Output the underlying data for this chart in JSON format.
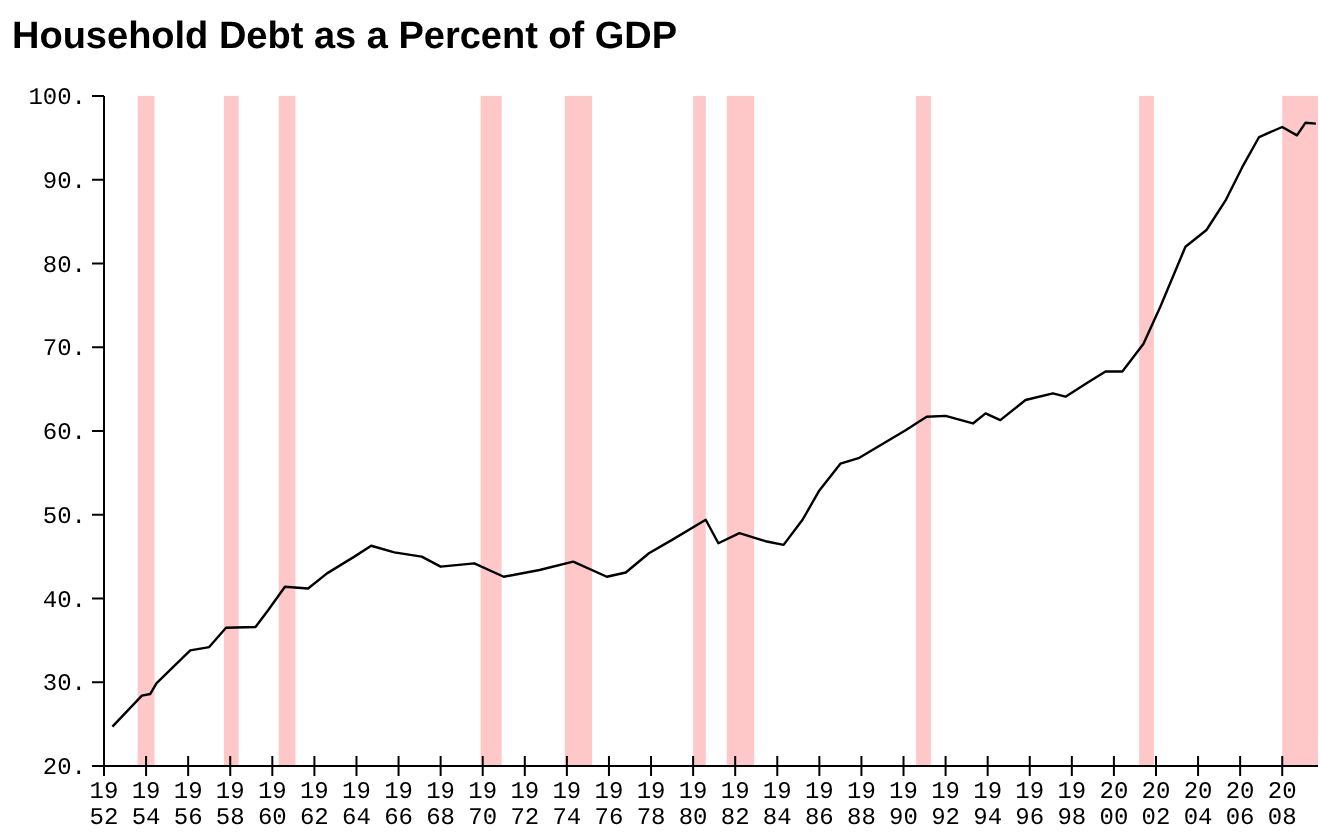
{
  "chart_data": {
    "type": "line",
    "title": "Household Debt as a Percent of GDP",
    "x": [
      1952.4,
      1953.8,
      1954.2,
      1954.5,
      1956.1,
      1957.0,
      1957.8,
      1959.2,
      1959.8,
      1960.6,
      1961.7,
      1962.6,
      1963.9,
      1964.7,
      1965.8,
      1967.1,
      1968.0,
      1969.6,
      1971.0,
      1972.7,
      1974.3,
      1975.9,
      1976.8,
      1977.9,
      1979.0,
      1980.6,
      1981.2,
      1982.2,
      1983.5,
      1984.3,
      1985.2,
      1986.0,
      1987.0,
      1987.9,
      1988.9,
      1990.1,
      1991.1,
      1992.0,
      1993.3,
      1993.9,
      1994.6,
      1995.8,
      1997.1,
      1997.7,
      1998.7,
      1999.6,
      2000.4,
      2001.4,
      2002.2,
      2003.4,
      2004.4,
      2005.3,
      2006.1,
      2006.9,
      2008.0,
      2008.7,
      2009.1,
      2009.6
    ],
    "series": [
      {
        "color": "#000000",
        "values": [
          24.7,
          28.4,
          28.6,
          29.9,
          33.8,
          34.2,
          36.5,
          36.6,
          38.6,
          41.4,
          41.2,
          43.0,
          45.0,
          46.3,
          45.5,
          45.0,
          43.8,
          44.2,
          42.6,
          43.4,
          44.4,
          42.6,
          43.1,
          45.4,
          47.0,
          49.4,
          46.6,
          47.8,
          46.8,
          46.4,
          49.4,
          52.9,
          56.1,
          56.8,
          58.3,
          60.1,
          61.7,
          61.8,
          60.9,
          62.1,
          61.3,
          63.7,
          64.5,
          64.1,
          65.7,
          67.1,
          67.1,
          70.4,
          74.8,
          82.0,
          84.0,
          87.5,
          91.5,
          95.1,
          96.3,
          95.3,
          96.8,
          96.7
        ]
      }
    ],
    "xlim": [
      1952,
      2009.7
    ],
    "xticks": [
      1952,
      1954,
      1956,
      1958,
      1960,
      1962,
      1964,
      1966,
      1968,
      1970,
      1972,
      1974,
      1976,
      1978,
      1980,
      1982,
      1984,
      1986,
      1988,
      1990,
      1992,
      1994,
      1996,
      1998,
      2000,
      2002,
      2004,
      2006,
      2008
    ],
    "ylim": [
      20,
      100
    ],
    "yticks": [
      {
        "value": 20,
        "label": "20."
      },
      {
        "value": 30,
        "label": "30."
      },
      {
        "value": 40,
        "label": "40."
      },
      {
        "value": 50,
        "label": "50."
      },
      {
        "value": 60,
        "label": "60."
      },
      {
        "value": 70,
        "label": "70."
      },
      {
        "value": 80,
        "label": "80."
      },
      {
        "value": 90,
        "label": "90."
      },
      {
        "value": 100,
        "label": "100."
      }
    ],
    "bands": [
      {
        "axis": "x",
        "from": 1953.6,
        "to": 1954.4,
        "color": "#ffc8c8"
      },
      {
        "axis": "x",
        "from": 1957.7,
        "to": 1958.4,
        "color": "#ffc8c8"
      },
      {
        "axis": "x",
        "from": 1960.3,
        "to": 1961.1,
        "color": "#ffc8c8"
      },
      {
        "axis": "x",
        "from": 1969.9,
        "to": 1970.9,
        "color": "#ffc8c8"
      },
      {
        "axis": "x",
        "from": 1973.9,
        "to": 1975.2,
        "color": "#ffc8c8"
      },
      {
        "axis": "x",
        "from": 1980.0,
        "to": 1980.6,
        "color": "#ffc8c8"
      },
      {
        "axis": "x",
        "from": 1981.6,
        "to": 1982.9,
        "color": "#ffc8c8"
      },
      {
        "axis": "x",
        "from": 1990.6,
        "to": 1991.3,
        "color": "#ffc8c8"
      },
      {
        "axis": "x",
        "from": 2001.2,
        "to": 2001.9,
        "color": "#ffc8c8"
      },
      {
        "axis": "x",
        "from": 2008.0,
        "to": 2009.7,
        "color": "#ffc8c8"
      }
    ],
    "grid": false,
    "marker": "none",
    "line_style": "solid"
  }
}
